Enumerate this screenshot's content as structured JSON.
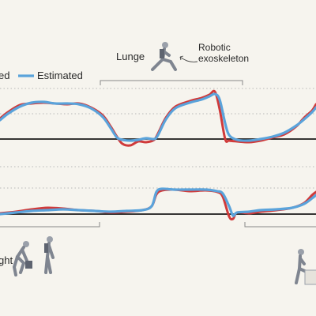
{
  "labels": {
    "legend_cut": "ed",
    "legend_estimated": "Estimated",
    "lunge": "Lunge",
    "robotic": "Robotic",
    "exoskeleton": "exoskeleton",
    "lift_cut": "ght"
  },
  "colors": {
    "measured": "#d03a3a",
    "estimated": "#5aa3db",
    "zero_line": "#1a1a1a",
    "dotted": "#b8b8b8",
    "bracket": "#888888",
    "figure": "#8a8f99"
  },
  "icons": [
    "lunge-figure-icon",
    "squat-lift-figure-icon",
    "stand-lift-figure-icon",
    "step-figure-icon"
  ],
  "chart_data": [
    {
      "type": "line",
      "panel": "top",
      "xlim": [
        0,
        400
      ],
      "ylim": [
        -20,
        70
      ],
      "grid": "dotted",
      "series": [
        {
          "name": "",
          "color": "#d03a3a",
          "x": [
            0,
            10,
            25,
            40,
            55,
            70,
            85,
            100,
            115,
            130,
            140,
            148,
            155,
            165,
            175,
            185,
            195,
            200,
            210,
            222,
            240,
            255,
            265,
            272,
            278,
            285,
            290,
            300,
            315,
            330,
            345,
            360,
            375,
            385,
            395,
            400
          ],
          "y": [
            26,
            34,
            43,
            45,
            46,
            45,
            44,
            45,
            40,
            30,
            16,
            3,
            -6,
            -8,
            -3,
            -4,
            -1,
            7,
            27,
            41,
            48,
            52,
            56,
            60,
            38,
            0,
            -2,
            -3,
            -4,
            -2,
            2,
            6,
            16,
            27,
            36,
            44
          ]
        },
        {
          "name": "Estimated",
          "color": "#5aa3db",
          "x": [
            0,
            10,
            25,
            40,
            55,
            70,
            85,
            100,
            115,
            130,
            140,
            148,
            155,
            165,
            175,
            185,
            195,
            200,
            210,
            222,
            240,
            255,
            265,
            272,
            278,
            285,
            290,
            300,
            315,
            330,
            345,
            360,
            375,
            385,
            395,
            400
          ],
          "y": [
            24,
            32,
            41,
            46,
            47,
            45,
            45,
            44,
            39,
            28,
            14,
            2,
            -1,
            -2,
            -1,
            1,
            0,
            5,
            25,
            39,
            46,
            50,
            54,
            57,
            50,
            20,
            5,
            -1,
            -2,
            0,
            3,
            8,
            17,
            25,
            34,
            40
          ]
        }
      ]
    },
    {
      "type": "line",
      "panel": "bottom",
      "xlim": [
        0,
        400
      ],
      "ylim": [
        -20,
        70
      ],
      "grid": "dotted",
      "series": [
        {
          "name": "",
          "color": "#d03a3a",
          "x": [
            0,
            20,
            40,
            60,
            80,
            100,
            120,
            140,
            160,
            180,
            192,
            198,
            205,
            220,
            240,
            260,
            275,
            282,
            290,
            295,
            300,
            315,
            330,
            350,
            370,
            385,
            395,
            400
          ],
          "y": [
            1,
            3,
            6,
            8,
            7,
            5,
            4,
            2,
            3,
            5,
            10,
            25,
            30,
            31,
            29,
            30,
            28,
            22,
            -3,
            -6,
            2,
            1,
            3,
            5,
            8,
            14,
            24,
            28
          ]
        },
        {
          "name": "Estimated",
          "color": "#5aa3db",
          "x": [
            0,
            20,
            40,
            60,
            80,
            100,
            120,
            140,
            160,
            180,
            192,
            198,
            205,
            220,
            240,
            260,
            275,
            282,
            290,
            295,
            300,
            315,
            330,
            350,
            370,
            385,
            395,
            400
          ],
          "y": [
            0,
            2,
            4,
            5,
            6,
            5,
            4,
            3,
            4,
            5,
            10,
            28,
            32,
            31,
            31,
            31,
            29,
            26,
            10,
            -2,
            2,
            3,
            5,
            6,
            8,
            13,
            20,
            24
          ]
        }
      ]
    }
  ]
}
